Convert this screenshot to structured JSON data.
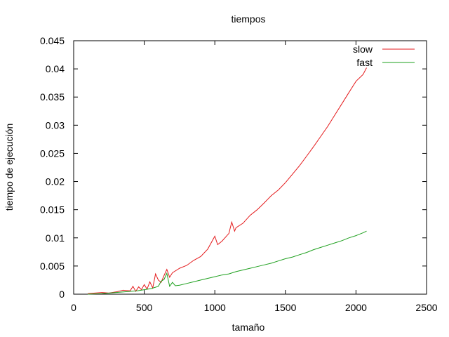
{
  "chart_data": {
    "type": "line",
    "title": "tiempos",
    "xlabel": "tamaño",
    "ylabel": "tiempo de ejecución",
    "xlim": [
      0,
      2500
    ],
    "ylim": [
      0,
      0.045
    ],
    "x_ticks": [
      0,
      500,
      1000,
      1500,
      2000,
      2500
    ],
    "x_tick_labels": [
      "0",
      "500",
      "1000",
      "1500",
      "2000",
      "2500"
    ],
    "y_ticks": [
      0,
      0.005,
      0.01,
      0.015,
      0.02,
      0.025,
      0.03,
      0.035,
      0.04,
      0.045
    ],
    "y_tick_labels": [
      "0",
      "0.005",
      "0.01",
      "0.015",
      "0.02",
      "0.025",
      "0.03",
      "0.035",
      "0.04",
      "0.045"
    ],
    "grid": false,
    "legend_position": "top-right",
    "series": [
      {
        "name": "slow",
        "color": "#e41a1c",
        "points": [
          [
            100,
            0.0001
          ],
          [
            150,
            0.0002
          ],
          [
            200,
            0.0003
          ],
          [
            250,
            0.0002
          ],
          [
            300,
            0.0004
          ],
          [
            350,
            0.0007
          ],
          [
            400,
            0.0006
          ],
          [
            420,
            0.0014
          ],
          [
            440,
            0.0005
          ],
          [
            460,
            0.0013
          ],
          [
            480,
            0.0008
          ],
          [
            500,
            0.0017
          ],
          [
            520,
            0.0009
          ],
          [
            540,
            0.0022
          ],
          [
            560,
            0.0011
          ],
          [
            580,
            0.0036
          ],
          [
            600,
            0.0025
          ],
          [
            620,
            0.0021
          ],
          [
            640,
            0.0033
          ],
          [
            660,
            0.0044
          ],
          [
            680,
            0.003
          ],
          [
            700,
            0.0038
          ],
          [
            750,
            0.0046
          ],
          [
            800,
            0.0051
          ],
          [
            850,
            0.006
          ],
          [
            900,
            0.0067
          ],
          [
            950,
            0.008
          ],
          [
            1000,
            0.0103
          ],
          [
            1020,
            0.0088
          ],
          [
            1050,
            0.0094
          ],
          [
            1100,
            0.0108
          ],
          [
            1120,
            0.0128
          ],
          [
            1140,
            0.0112
          ],
          [
            1150,
            0.0118
          ],
          [
            1200,
            0.0126
          ],
          [
            1250,
            0.014
          ],
          [
            1300,
            0.015
          ],
          [
            1350,
            0.0162
          ],
          [
            1400,
            0.0175
          ],
          [
            1450,
            0.0185
          ],
          [
            1500,
            0.0198
          ],
          [
            1550,
            0.0213
          ],
          [
            1600,
            0.0228
          ],
          [
            1650,
            0.0245
          ],
          [
            1700,
            0.0262
          ],
          [
            1750,
            0.028
          ],
          [
            1800,
            0.0298
          ],
          [
            1850,
            0.0318
          ],
          [
            1900,
            0.0338
          ],
          [
            1950,
            0.0358
          ],
          [
            2000,
            0.0378
          ],
          [
            2050,
            0.039
          ],
          [
            2075,
            0.0402
          ]
        ]
      },
      {
        "name": "fast",
        "color": "#1ea01e",
        "points": [
          [
            100,
            0.0
          ],
          [
            200,
            0.0001
          ],
          [
            300,
            0.0003
          ],
          [
            400,
            0.0005
          ],
          [
            450,
            0.0006
          ],
          [
            500,
            0.0008
          ],
          [
            550,
            0.001
          ],
          [
            600,
            0.0014
          ],
          [
            620,
            0.0023
          ],
          [
            640,
            0.0026
          ],
          [
            660,
            0.0037
          ],
          [
            680,
            0.0014
          ],
          [
            700,
            0.0021
          ],
          [
            720,
            0.0015
          ],
          [
            750,
            0.0016
          ],
          [
            800,
            0.0019
          ],
          [
            850,
            0.0022
          ],
          [
            900,
            0.0025
          ],
          [
            950,
            0.0028
          ],
          [
            1000,
            0.0031
          ],
          [
            1050,
            0.0034
          ],
          [
            1100,
            0.0036
          ],
          [
            1150,
            0.004
          ],
          [
            1200,
            0.0043
          ],
          [
            1250,
            0.0046
          ],
          [
            1300,
            0.0049
          ],
          [
            1350,
            0.0052
          ],
          [
            1400,
            0.0055
          ],
          [
            1450,
            0.0059
          ],
          [
            1500,
            0.0063
          ],
          [
            1550,
            0.0066
          ],
          [
            1600,
            0.007
          ],
          [
            1650,
            0.0074
          ],
          [
            1700,
            0.0079
          ],
          [
            1750,
            0.0083
          ],
          [
            1800,
            0.0087
          ],
          [
            1850,
            0.0091
          ],
          [
            1900,
            0.0095
          ],
          [
            1950,
            0.01
          ],
          [
            2000,
            0.0104
          ],
          [
            2050,
            0.0109
          ],
          [
            2075,
            0.0112
          ]
        ]
      }
    ]
  }
}
